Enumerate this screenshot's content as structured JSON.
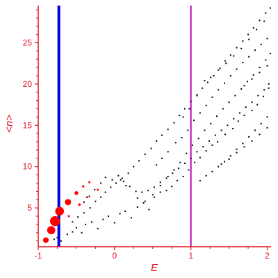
{
  "chart_data": {
    "type": "scatter",
    "xlabel": "E",
    "ylabel": "<n>",
    "xlim": [
      -1.0,
      2.05
    ],
    "ylim": [
      0.3,
      29.5
    ],
    "xticks": [
      -1,
      0,
      1,
      2
    ],
    "xtick_labels": [
      "-1",
      "0",
      "1",
      "2"
    ],
    "yticks": [
      5,
      10,
      15,
      20,
      25
    ],
    "ytick_labels": [
      "5",
      "10",
      "15",
      "20",
      "25"
    ],
    "grid": false,
    "colors": {
      "axis": "#e0101e",
      "points": "#000000",
      "highlight": "#ff0000",
      "line_blue": "#0000e0",
      "line_magenta": "#c000c0"
    },
    "vertical_lines": [
      {
        "x": -0.73,
        "color": "#0000e0",
        "width": 4
      },
      {
        "x": 1.0,
        "color": "#c000c0",
        "width": 2
      }
    ],
    "series": [
      {
        "marker": "dot",
        "color": "#000000",
        "points": [
          [
            -0.79,
            1.2
          ],
          [
            -0.75,
            1.4
          ],
          [
            -0.7,
            1.0
          ],
          [
            -0.62,
            1.8
          ],
          [
            -0.55,
            2.1
          ],
          [
            -0.5,
            2.6
          ],
          [
            -0.43,
            2.0
          ],
          [
            -0.38,
            3.0
          ],
          [
            -0.3,
            3.3
          ],
          [
            -0.22,
            2.5
          ],
          [
            -0.15,
            3.6
          ],
          [
            -0.08,
            4.0
          ],
          [
            0.0,
            3.2
          ],
          [
            0.07,
            4.3
          ],
          [
            0.14,
            4.6
          ],
          [
            0.22,
            3.8
          ],
          [
            0.3,
            5.1
          ],
          [
            0.38,
            5.6
          ],
          [
            0.45,
            4.8
          ],
          [
            0.52,
            6.3
          ],
          [
            0.6,
            6.9
          ],
          [
            0.68,
            7.1
          ],
          [
            0.75,
            7.6
          ],
          [
            0.82,
            8.3
          ],
          [
            0.9,
            8.8
          ],
          [
            0.97,
            9.6
          ],
          [
            1.05,
            10.5
          ],
          [
            1.12,
            11.1
          ],
          [
            1.2,
            11.9
          ],
          [
            1.28,
            12.6
          ],
          [
            1.35,
            13.0
          ],
          [
            1.45,
            13.9
          ],
          [
            1.55,
            14.6
          ],
          [
            1.62,
            15.5
          ],
          [
            1.7,
            16.2
          ],
          [
            1.8,
            16.8
          ],
          [
            1.87,
            17.5
          ],
          [
            1.95,
            18.5
          ],
          [
            2.02,
            19.5
          ],
          [
            -0.55,
            3.3
          ],
          [
            -0.48,
            3.9
          ],
          [
            -0.4,
            4.4
          ],
          [
            -0.32,
            5.0
          ],
          [
            -0.25,
            5.8
          ],
          [
            -0.18,
            6.3
          ],
          [
            -0.12,
            6.9
          ],
          [
            -0.05,
            7.5
          ],
          [
            0.02,
            8.0
          ],
          [
            0.1,
            8.6
          ],
          [
            0.18,
            9.2
          ],
          [
            0.25,
            10.0
          ],
          [
            0.32,
            10.7
          ],
          [
            0.4,
            11.5
          ],
          [
            0.48,
            12.2
          ],
          [
            0.55,
            13.1
          ],
          [
            0.62,
            13.8
          ],
          [
            0.7,
            14.5
          ],
          [
            0.78,
            15.3
          ],
          [
            0.85,
            16.2
          ],
          [
            0.92,
            17.0
          ],
          [
            1.0,
            17.9
          ],
          [
            1.08,
            18.7
          ],
          [
            1.15,
            19.5
          ],
          [
            1.22,
            20.2
          ],
          [
            1.3,
            21.0
          ],
          [
            1.38,
            21.9
          ],
          [
            1.45,
            22.8
          ],
          [
            1.52,
            23.5
          ],
          [
            1.6,
            24.4
          ],
          [
            1.68,
            25.2
          ],
          [
            1.75,
            26.0
          ],
          [
            1.82,
            26.8
          ],
          [
            1.9,
            27.7
          ],
          [
            1.98,
            28.6
          ],
          [
            2.04,
            29.2
          ],
          [
            -0.4,
            5.7
          ],
          [
            -0.33,
            6.4
          ],
          [
            -0.26,
            7.2
          ],
          [
            -0.18,
            8.0
          ],
          [
            -0.12,
            8.7
          ],
          [
            -0.03,
            8.4
          ],
          [
            0.05,
            8.9
          ],
          [
            0.12,
            8.2
          ],
          [
            0.2,
            7.6
          ],
          [
            0.28,
            7.0
          ],
          [
            0.36,
            6.9
          ],
          [
            0.44,
            7.1
          ],
          [
            0.52,
            7.5
          ],
          [
            0.6,
            8.1
          ],
          [
            0.68,
            8.6
          ],
          [
            0.76,
            9.2
          ],
          [
            0.84,
            9.8
          ],
          [
            0.92,
            10.4
          ],
          [
            1.0,
            11.0
          ],
          [
            1.08,
            11.8
          ],
          [
            1.16,
            12.4
          ],
          [
            1.24,
            13.1
          ],
          [
            1.32,
            13.8
          ],
          [
            1.4,
            14.4
          ],
          [
            1.48,
            15.0
          ],
          [
            1.56,
            15.8
          ],
          [
            1.64,
            16.5
          ],
          [
            1.72,
            17.2
          ],
          [
            1.8,
            17.8
          ],
          [
            1.88,
            18.6
          ],
          [
            1.96,
            19.3
          ],
          [
            2.02,
            20.0
          ],
          [
            0.08,
            8.4
          ],
          [
            0.15,
            7.7
          ],
          [
            0.3,
            6.2
          ],
          [
            0.4,
            5.8
          ],
          [
            0.5,
            6.6
          ],
          [
            0.6,
            7.7
          ],
          [
            0.7,
            8.8
          ],
          [
            0.78,
            9.6
          ],
          [
            0.86,
            10.5
          ],
          [
            0.94,
            11.6
          ],
          [
            1.02,
            12.6
          ],
          [
            1.1,
            13.4
          ],
          [
            1.18,
            14.4
          ],
          [
            1.26,
            15.2
          ],
          [
            1.34,
            16.1
          ],
          [
            1.42,
            17.0
          ],
          [
            1.5,
            17.8
          ],
          [
            1.58,
            18.6
          ],
          [
            1.66,
            19.4
          ],
          [
            1.74,
            20.3
          ],
          [
            1.82,
            21.1
          ],
          [
            1.9,
            22.0
          ],
          [
            1.98,
            22.9
          ],
          [
            2.04,
            23.7
          ],
          [
            0.55,
            10.2
          ],
          [
            0.62,
            11.0
          ],
          [
            0.7,
            11.8
          ],
          [
            0.8,
            12.9
          ],
          [
            0.88,
            13.5
          ],
          [
            0.96,
            14.4
          ],
          [
            1.04,
            15.6
          ],
          [
            1.12,
            16.5
          ],
          [
            1.2,
            17.4
          ],
          [
            1.28,
            18.4
          ],
          [
            1.36,
            19.3
          ],
          [
            1.44,
            20.1
          ],
          [
            1.52,
            21.0
          ],
          [
            1.6,
            21.8
          ],
          [
            1.68,
            22.6
          ],
          [
            1.76,
            23.3
          ],
          [
            1.84,
            24.1
          ],
          [
            1.92,
            24.8
          ],
          [
            2.0,
            25.5
          ],
          [
            0.9,
            16.0
          ],
          [
            0.98,
            17.0
          ],
          [
            1.08,
            18.6
          ],
          [
            1.18,
            20.4
          ],
          [
            1.26,
            20.8
          ],
          [
            1.36,
            21.7
          ],
          [
            1.46,
            22.5
          ],
          [
            1.56,
            23.4
          ],
          [
            1.66,
            24.3
          ],
          [
            1.76,
            25.4
          ],
          [
            1.86,
            26.6
          ],
          [
            1.96,
            27.6
          ],
          [
            1.12,
            8.3
          ],
          [
            1.2,
            8.9
          ],
          [
            1.28,
            9.4
          ],
          [
            1.36,
            10.0
          ],
          [
            1.44,
            10.6
          ],
          [
            1.52,
            11.3
          ],
          [
            1.6,
            12.1
          ],
          [
            1.68,
            12.8
          ],
          [
            1.76,
            13.6
          ],
          [
            1.84,
            14.4
          ],
          [
            1.92,
            15.2
          ],
          [
            2.0,
            16.0
          ],
          [
            1.4,
            10.3
          ],
          [
            1.5,
            10.9
          ],
          [
            1.6,
            11.7
          ],
          [
            1.7,
            12.4
          ],
          [
            1.8,
            13.1
          ],
          [
            1.9,
            13.9
          ],
          [
            2.0,
            14.7
          ],
          [
            1.7,
            19.8
          ],
          [
            1.8,
            20.6
          ],
          [
            1.9,
            21.4
          ],
          [
            2.0,
            22.2
          ]
        ]
      },
      {
        "marker": "circle",
        "color": "#ff0000",
        "points": [
          {
            "x": -0.9,
            "y": 1.1,
            "size": 0.45
          },
          {
            "x": -0.83,
            "y": 2.3,
            "size": 0.65
          },
          {
            "x": -0.78,
            "y": 3.4,
            "size": 0.8
          },
          {
            "x": -0.72,
            "y": 4.6,
            "size": 0.7
          },
          {
            "x": -0.61,
            "y": 5.7,
            "size": 0.5
          },
          {
            "x": -0.5,
            "y": 6.8,
            "size": 0.3
          },
          {
            "x": -0.46,
            "y": 5.4,
            "size": 0.2
          },
          {
            "x": -0.41,
            "y": 7.6,
            "size": 0.18
          },
          {
            "x": -0.36,
            "y": 6.3,
            "size": 0.15
          },
          {
            "x": -0.33,
            "y": 8.1,
            "size": 0.12
          },
          {
            "x": -0.22,
            "y": 7.2,
            "size": 0.08
          },
          {
            "x": -0.6,
            "y": 4.0,
            "size": 0.15
          }
        ]
      }
    ]
  }
}
